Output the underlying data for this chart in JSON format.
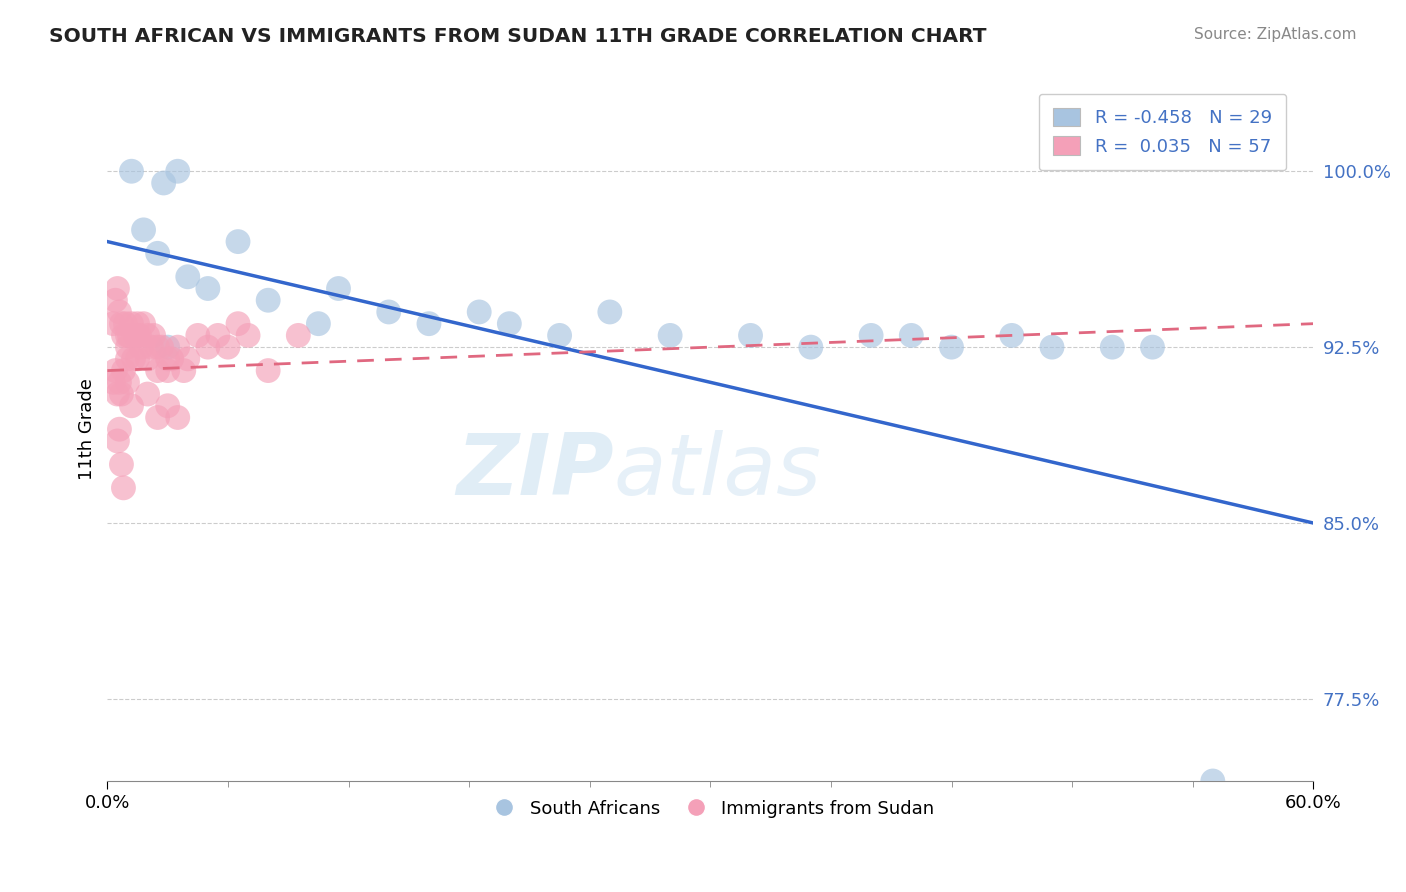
{
  "title": "SOUTH AFRICAN VS IMMIGRANTS FROM SUDAN 11TH GRADE CORRELATION CHART",
  "source": "Source: ZipAtlas.com",
  "xlabel_ticks": [
    "0.0%",
    "60.0%"
  ],
  "ylabel_ticks": [
    77.5,
    85.0,
    92.5,
    100.0
  ],
  "ylabel_labels": [
    "77.5%",
    "85.0%",
    "92.5%",
    "100.0%"
  ],
  "ylabel_label": "11th Grade",
  "xlim": [
    0.0,
    60.0
  ],
  "ylim": [
    74.0,
    104.0
  ],
  "blue_R": -0.458,
  "blue_N": 29,
  "pink_R": 0.035,
  "pink_N": 57,
  "blue_color": "#a8c4e0",
  "pink_color": "#f4a0b8",
  "blue_line_color": "#3366cc",
  "pink_line_color": "#e06880",
  "blue_line_x0": 0.0,
  "blue_line_y0": 97.0,
  "blue_line_x1": 60.0,
  "blue_line_y1": 85.0,
  "pink_line_x0": 0.0,
  "pink_line_y0": 91.5,
  "pink_line_x1": 60.0,
  "pink_line_y1": 93.5,
  "watermark_part1": "ZIP",
  "watermark_part2": "atlas",
  "legend_label_blue": "South Africans",
  "legend_label_pink": "Immigrants from Sudan",
  "blue_scatter_x": [
    1.2,
    1.8,
    2.5,
    2.8,
    3.5,
    4.0,
    5.0,
    6.5,
    8.0,
    10.5,
    11.5,
    14.0,
    16.0,
    18.5,
    20.0,
    22.5,
    25.0,
    28.0,
    32.0,
    35.0,
    38.0,
    40.0,
    42.0,
    45.0,
    47.0,
    50.0,
    52.0,
    55.0,
    3.0
  ],
  "blue_scatter_y": [
    100.0,
    97.5,
    96.5,
    99.5,
    100.0,
    95.5,
    95.0,
    97.0,
    94.5,
    93.5,
    95.0,
    94.0,
    93.5,
    94.0,
    93.5,
    93.0,
    94.0,
    93.0,
    93.0,
    92.5,
    93.0,
    93.0,
    92.5,
    93.0,
    92.5,
    92.5,
    92.5,
    74.0,
    92.5
  ],
  "pink_scatter_x": [
    0.3,
    0.4,
    0.5,
    0.6,
    0.7,
    0.8,
    0.9,
    1.0,
    1.0,
    1.0,
    1.1,
    1.2,
    1.3,
    1.4,
    1.5,
    1.5,
    1.5,
    1.6,
    1.7,
    1.8,
    2.0,
    2.0,
    2.2,
    2.3,
    2.5,
    2.5,
    2.7,
    3.0,
    3.0,
    3.2,
    3.5,
    3.8,
    4.0,
    4.5,
    5.0,
    5.5,
    6.0,
    6.5,
    7.0,
    8.0,
    9.5,
    0.3,
    0.4,
    0.5,
    0.6,
    0.7,
    0.8,
    1.0,
    1.2,
    2.0,
    2.5,
    3.0,
    3.5,
    0.5,
    0.6,
    0.7,
    0.8
  ],
  "pink_scatter_y": [
    93.5,
    94.5,
    95.0,
    94.0,
    93.5,
    93.0,
    93.5,
    93.0,
    92.5,
    92.0,
    93.0,
    93.5,
    92.0,
    93.0,
    93.5,
    93.0,
    92.0,
    93.0,
    92.5,
    93.5,
    93.0,
    92.0,
    92.5,
    93.0,
    92.5,
    91.5,
    92.5,
    92.0,
    91.5,
    92.0,
    92.5,
    91.5,
    92.0,
    93.0,
    92.5,
    93.0,
    92.5,
    93.5,
    93.0,
    91.5,
    93.0,
    91.0,
    91.5,
    90.5,
    91.0,
    90.5,
    91.5,
    91.0,
    90.0,
    90.5,
    89.5,
    90.0,
    89.5,
    88.5,
    89.0,
    87.5,
    86.5
  ]
}
